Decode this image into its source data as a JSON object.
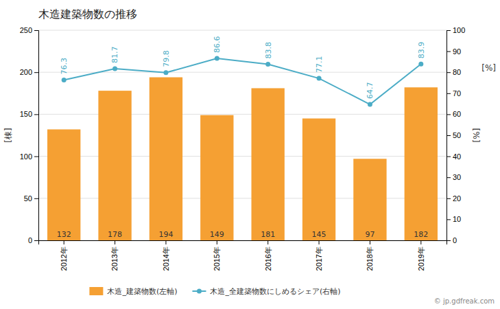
{
  "chart_data": {
    "type": "bar",
    "title": "木造建築物数の推移",
    "categories": [
      "2012年",
      "2013年",
      "2014年",
      "2015年",
      "2016年",
      "2017年",
      "2018年",
      "2019年"
    ],
    "series": [
      {
        "name": "木造_建築物数(左軸)",
        "type": "bar",
        "color": "#f5a033",
        "values": [
          132,
          178,
          194,
          149,
          181,
          145,
          97,
          182
        ],
        "data_labels": true
      },
      {
        "name": "木造_全建築物数にしめるシェア(右軸)",
        "type": "line",
        "axis": "y2",
        "color": "#4bacc6",
        "marker": "circle",
        "values": [
          76.3,
          81.7,
          79.8,
          86.6,
          83.8,
          77.1,
          64.7,
          83.9
        ],
        "data_labels": true
      }
    ],
    "y_label": "[棟]",
    "y2_label": "[%]",
    "annotations": [
      "[%]",
      "© jp.gdfreak.com"
    ],
    "ylim": [
      0,
      250
    ],
    "yticks": [
      0,
      50,
      100,
      150,
      200,
      250
    ],
    "y2lim": [
      0,
      100
    ],
    "y2ticks": [
      0,
      10,
      20,
      30,
      40,
      50,
      60,
      70,
      80,
      90,
      100
    ],
    "grid": true,
    "legend": "bottom"
  }
}
